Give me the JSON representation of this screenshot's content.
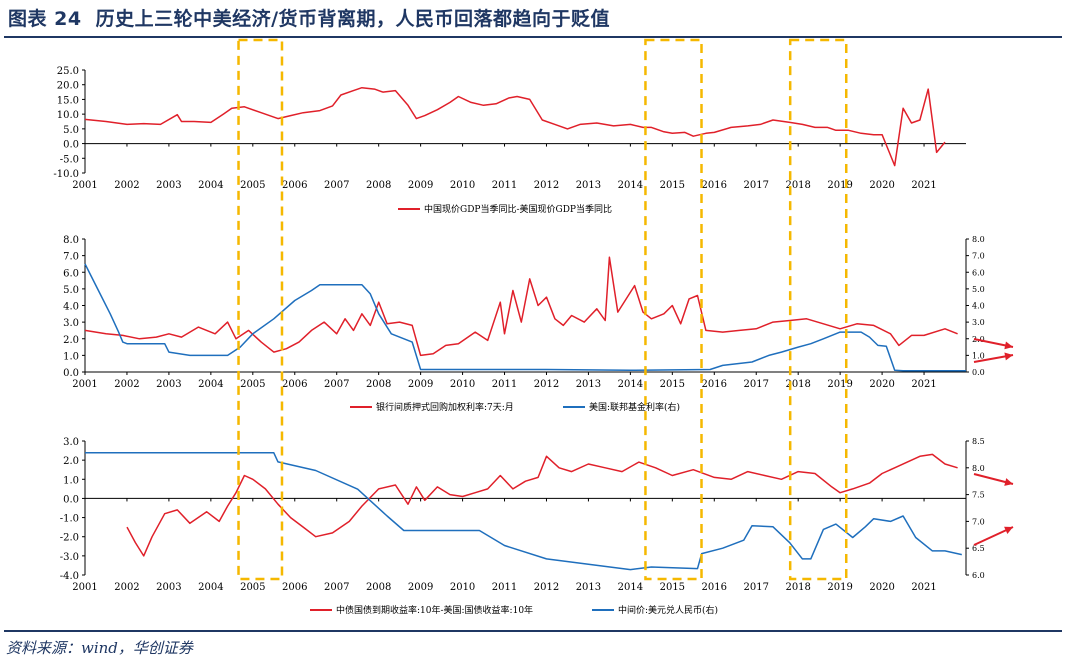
{
  "figure": {
    "number": "图表 24",
    "title": "历史上三轮中美经济/货币背离期，人民币回落都趋向于贬值",
    "source": "资料来源：wind，华创证券"
  },
  "colors": {
    "red": "#e0202a",
    "blue": "#1f6fbd",
    "highlight": "#f5b800",
    "navy": "#1f3763",
    "arrow": "#e0202a"
  },
  "chart_data": [
    {
      "type": "line",
      "title": "",
      "x_ticks": [
        "2001",
        "2002",
        "2003",
        "2004",
        "2005",
        "2006",
        "2007",
        "2008",
        "2009",
        "2010",
        "2011",
        "2012",
        "2013",
        "2014",
        "2015",
        "2016",
        "2017",
        "2018",
        "2019",
        "2020",
        "2021"
      ],
      "y_ticks": [
        "25.0",
        "20.0",
        "15.0",
        "10.0",
        "5.0",
        "0.0",
        "-5.0",
        "-10.0"
      ],
      "ylim": [
        -10,
        25
      ],
      "xlim": [
        2001,
        2022
      ],
      "series": [
        {
          "name": "中国现价GDP当季同比-美国现价GDP当季同比",
          "color": "red",
          "x": [
            2001.0,
            2001.5,
            2002.0,
            2002.4,
            2002.8,
            2003.2,
            2003.3,
            2003.6,
            2004.0,
            2004.3,
            2004.5,
            2004.8,
            2005.2,
            2005.6,
            2005.9,
            2006.2,
            2006.6,
            2006.9,
            2007.1,
            2007.4,
            2007.6,
            2007.9,
            2008.1,
            2008.4,
            2008.7,
            2008.9,
            2009.1,
            2009.4,
            2009.7,
            2009.9,
            2010.2,
            2010.5,
            2010.8,
            2011.1,
            2011.3,
            2011.6,
            2011.9,
            2012.2,
            2012.5,
            2012.8,
            2013.2,
            2013.6,
            2014.0,
            2014.3,
            2014.5,
            2014.8,
            2015.0,
            2015.3,
            2015.5,
            2015.8,
            2016.0,
            2016.4,
            2016.8,
            2017.1,
            2017.4,
            2017.8,
            2018.1,
            2018.4,
            2018.7,
            2018.9,
            2019.2,
            2019.5,
            2019.8,
            2020.0,
            2020.3,
            2020.5,
            2020.7,
            2020.9,
            2021.1,
            2021.3,
            2021.5
          ],
          "y": [
            8.2,
            7.5,
            6.5,
            6.8,
            6.5,
            9.8,
            7.5,
            7.5,
            7.2,
            10.0,
            12.0,
            12.5,
            10.5,
            8.5,
            9.5,
            10.5,
            11.2,
            12.8,
            16.5,
            18.0,
            19.0,
            18.5,
            17.5,
            18.0,
            13.0,
            8.5,
            9.5,
            11.5,
            14.0,
            16.0,
            14.0,
            13.0,
            13.5,
            15.5,
            16.0,
            15.0,
            8.0,
            6.5,
            5.0,
            6.5,
            7.0,
            6.0,
            6.5,
            5.5,
            5.5,
            4.0,
            3.5,
            3.8,
            2.5,
            3.5,
            3.8,
            5.5,
            6.0,
            6.5,
            8.0,
            7.2,
            6.5,
            5.5,
            5.5,
            4.5,
            4.5,
            3.5,
            3.0,
            3.0,
            -7.5,
            12.0,
            7.0,
            8.0,
            18.5,
            -3.0,
            0.5
          ]
        }
      ]
    },
    {
      "type": "line",
      "title": "",
      "x_ticks": [
        "2001",
        "2002",
        "2003",
        "2004",
        "2005",
        "2006",
        "2007",
        "2008",
        "2009",
        "2010",
        "2011",
        "2012",
        "2013",
        "2014",
        "2015",
        "2016",
        "2017",
        "2018",
        "2019",
        "2020",
        "2021"
      ],
      "y_ticks_left": [
        "8.0",
        "7.0",
        "6.0",
        "5.0",
        "4.0",
        "3.0",
        "2.0",
        "1.0",
        "0.0"
      ],
      "y_ticks_right": [
        "8.0",
        "7.0",
        "6.0",
        "5.0",
        "4.0",
        "3.0",
        "2.0",
        "1.0",
        "0.0"
      ],
      "ylim_left": [
        0,
        8
      ],
      "ylim_right": [
        0,
        8
      ],
      "xlim": [
        2001,
        2022
      ],
      "series": [
        {
          "name": "银行间质押式回购加权利率:7天:月",
          "color": "red",
          "axis": "left",
          "x": [
            2001.0,
            2001.5,
            2001.9,
            2002.3,
            2002.7,
            2003.0,
            2003.3,
            2003.7,
            2004.1,
            2004.4,
            2004.6,
            2004.9,
            2005.2,
            2005.5,
            2005.8,
            2006.1,
            2006.4,
            2006.7,
            2007.0,
            2007.2,
            2007.4,
            2007.6,
            2007.8,
            2008.0,
            2008.2,
            2008.5,
            2008.8,
            2009.0,
            2009.3,
            2009.6,
            2009.9,
            2010.3,
            2010.6,
            2010.9,
            2011.0,
            2011.2,
            2011.4,
            2011.6,
            2011.8,
            2012.0,
            2012.2,
            2012.4,
            2012.6,
            2012.9,
            2013.2,
            2013.4,
            2013.5,
            2013.7,
            2013.9,
            2014.1,
            2014.3,
            2014.5,
            2014.8,
            2015.0,
            2015.2,
            2015.4,
            2015.6,
            2015.8,
            2016.2,
            2016.6,
            2017.0,
            2017.4,
            2017.8,
            2018.2,
            2018.6,
            2019.0,
            2019.4,
            2019.8,
            2020.2,
            2020.4,
            2020.7,
            2021.0,
            2021.5,
            2021.8
          ],
          "y": [
            2.5,
            2.3,
            2.2,
            2.0,
            2.1,
            2.3,
            2.1,
            2.7,
            2.3,
            3.0,
            2.0,
            2.5,
            1.8,
            1.2,
            1.4,
            1.8,
            2.5,
            3.0,
            2.3,
            3.2,
            2.5,
            3.5,
            2.8,
            4.2,
            2.9,
            3.0,
            2.8,
            1.0,
            1.1,
            1.6,
            1.7,
            2.4,
            1.9,
            4.2,
            2.3,
            4.9,
            3.0,
            5.6,
            4.0,
            4.5,
            3.2,
            2.8,
            3.4,
            3.0,
            3.8,
            3.1,
            6.9,
            3.6,
            4.4,
            5.2,
            3.6,
            3.2,
            3.5,
            4.0,
            2.9,
            4.4,
            4.6,
            2.5,
            2.4,
            2.5,
            2.6,
            3.0,
            3.1,
            3.2,
            2.9,
            2.6,
            2.9,
            2.8,
            2.3,
            1.6,
            2.2,
            2.2,
            2.6,
            2.3
          ]
        },
        {
          "name": "美国:联邦基金利率(右)",
          "color": "blue",
          "axis": "right",
          "x": [
            2001.0,
            2001.3,
            2001.6,
            2001.8,
            2001.9,
            2002.0,
            2002.9,
            2003.0,
            2003.5,
            2004.4,
            2004.7,
            2005.0,
            2005.5,
            2006.0,
            2006.4,
            2006.6,
            2007.0,
            2007.6,
            2007.8,
            2008.0,
            2008.3,
            2008.8,
            2009.0,
            2010.0,
            2012.0,
            2014.0,
            2015.9,
            2016.2,
            2016.9,
            2017.3,
            2017.6,
            2018.0,
            2018.3,
            2018.6,
            2019.0,
            2019.5,
            2019.7,
            2019.9,
            2020.1,
            2020.3,
            2020.5,
            2022.0
          ],
          "y": [
            6.5,
            5.0,
            3.5,
            2.4,
            1.8,
            1.7,
            1.7,
            1.2,
            1.0,
            1.0,
            1.5,
            2.3,
            3.2,
            4.3,
            4.9,
            5.25,
            5.25,
            5.25,
            4.7,
            3.5,
            2.3,
            1.8,
            0.15,
            0.15,
            0.15,
            0.1,
            0.15,
            0.4,
            0.6,
            1.0,
            1.2,
            1.5,
            1.7,
            2.0,
            2.4,
            2.4,
            2.1,
            1.6,
            1.55,
            0.1,
            0.08,
            0.08
          ]
        }
      ]
    },
    {
      "type": "line",
      "title": "",
      "x_ticks": [
        "2001",
        "2002",
        "2003",
        "2004",
        "2005",
        "2006",
        "2007",
        "2008",
        "2009",
        "2010",
        "2011",
        "2012",
        "2013",
        "2014",
        "2015",
        "2016",
        "2017",
        "2018",
        "2019",
        "2020",
        "2021"
      ],
      "y_ticks_left": [
        "3.0",
        "2.0",
        "1.0",
        "0.0",
        "-1.0",
        "-2.0",
        "-3.0",
        "-4.0"
      ],
      "y_ticks_right": [
        "8.5",
        "8.0",
        "7.5",
        "7.0",
        "6.5",
        "6.0"
      ],
      "ylim_left": [
        -4,
        3
      ],
      "ylim_right": [
        6.0,
        8.5
      ],
      "xlim": [
        2001,
        2022
      ],
      "series": [
        {
          "name": "中债国债到期收益率:10年-美国:国债收益率:10年",
          "color": "red",
          "axis": "left",
          "x": [
            2002.0,
            2002.2,
            2002.4,
            2002.6,
            2002.9,
            2003.2,
            2003.5,
            2003.9,
            2004.2,
            2004.4,
            2004.6,
            2004.8,
            2005.0,
            2005.3,
            2005.6,
            2005.9,
            2006.2,
            2006.5,
            2006.9,
            2007.3,
            2007.6,
            2008.0,
            2008.4,
            2008.7,
            2008.9,
            2009.1,
            2009.4,
            2009.7,
            2010.0,
            2010.3,
            2010.6,
            2010.9,
            2011.2,
            2011.5,
            2011.8,
            2012.0,
            2012.3,
            2012.6,
            2013.0,
            2013.4,
            2013.8,
            2014.2,
            2014.6,
            2015.0,
            2015.5,
            2016.0,
            2016.4,
            2016.8,
            2017.2,
            2017.6,
            2018.0,
            2018.4,
            2018.8,
            2019.0,
            2019.3,
            2019.7,
            2020.0,
            2020.3,
            2020.6,
            2020.9,
            2021.2,
            2021.5,
            2021.8
          ],
          "y": [
            -1.5,
            -2.3,
            -3.0,
            -2.0,
            -0.8,
            -0.6,
            -1.3,
            -0.7,
            -1.2,
            -0.4,
            0.3,
            1.2,
            1.0,
            0.5,
            -0.3,
            -1.0,
            -1.5,
            -2.0,
            -1.8,
            -1.2,
            -0.4,
            0.5,
            0.7,
            -0.3,
            0.6,
            -0.1,
            0.6,
            0.2,
            0.1,
            0.3,
            0.5,
            1.2,
            0.5,
            0.9,
            1.1,
            2.2,
            1.6,
            1.4,
            1.8,
            1.6,
            1.4,
            1.9,
            1.6,
            1.2,
            1.5,
            1.1,
            1.0,
            1.4,
            1.2,
            1.0,
            1.4,
            1.3,
            0.6,
            0.3,
            0.5,
            0.8,
            1.3,
            1.6,
            1.9,
            2.2,
            2.3,
            1.8,
            1.6
          ]
        },
        {
          "name": "中间价:美元兑人民币(右)",
          "color": "blue",
          "axis": "right",
          "x": [
            2001.0,
            2005.5,
            2005.6,
            2006.5,
            2007.5,
            2008.2,
            2008.6,
            2010.4,
            2011.0,
            2012.0,
            2013.0,
            2014.0,
            2014.5,
            2015.6,
            2015.7,
            2016.2,
            2016.7,
            2016.9,
            2017.4,
            2017.8,
            2018.1,
            2018.3,
            2018.6,
            2018.9,
            2019.3,
            2019.6,
            2019.8,
            2020.2,
            2020.5,
            2020.8,
            2021.2,
            2021.5,
            2021.9
          ],
          "y": [
            8.28,
            8.28,
            8.11,
            7.95,
            7.6,
            7.1,
            6.83,
            6.83,
            6.55,
            6.3,
            6.2,
            6.1,
            6.15,
            6.12,
            6.4,
            6.5,
            6.65,
            6.92,
            6.9,
            6.6,
            6.3,
            6.3,
            6.85,
            6.95,
            6.7,
            6.9,
            7.05,
            7.0,
            7.1,
            6.7,
            6.45,
            6.45,
            6.38
          ]
        }
      ]
    }
  ],
  "legends": {
    "top": "中国现价GDP当季同比-美国现价GDP当季同比",
    "mid_left": "银行间质押式回购加权利率:7天:月",
    "mid_right": "美国:联邦基金利率(右)",
    "bottom_left": "中债国债到期收益率:10年-美国:国债收益率:10年",
    "bottom_right": "中间价:美元兑人民币(右)"
  },
  "highlight_periods": [
    [
      2004.85,
      2005.6
    ],
    [
      2014.55,
      2015.6
    ],
    [
      2018.0,
      2019.05
    ]
  ]
}
